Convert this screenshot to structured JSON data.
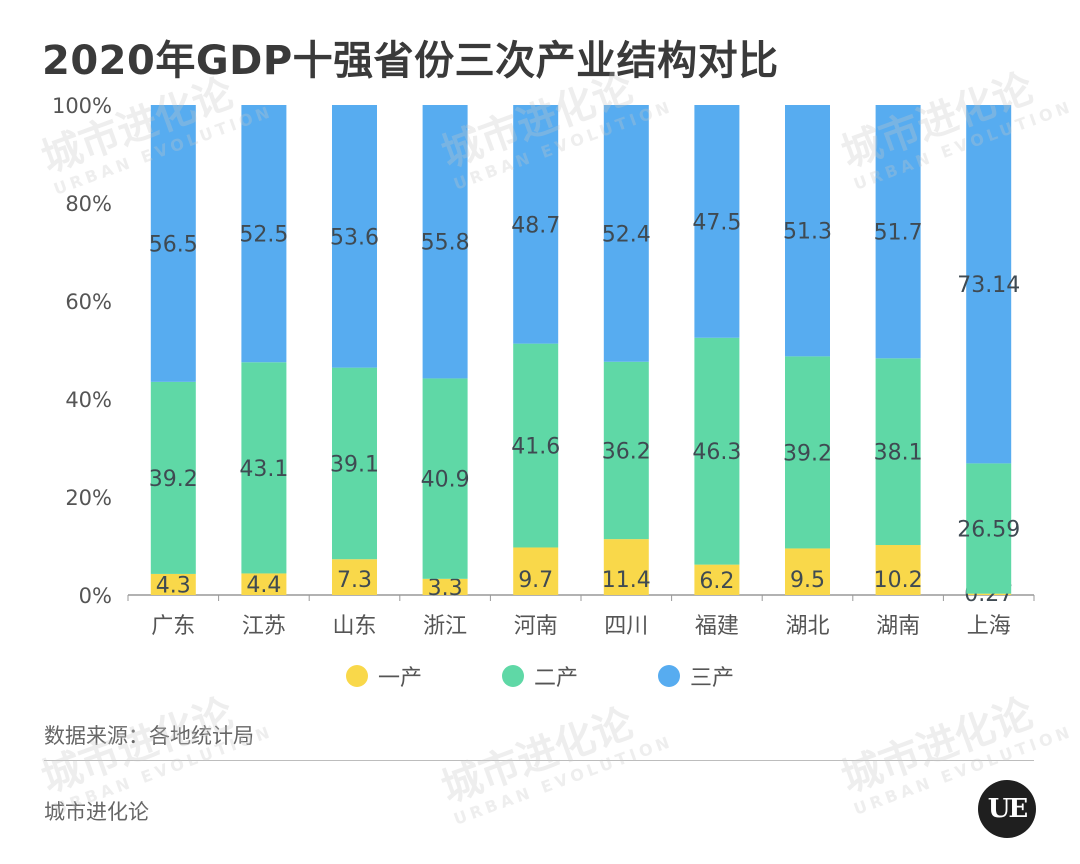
{
  "page": {
    "title": "2020年GDP十强省份三次产业结构对比",
    "source": "数据来源：各地统计局",
    "footer": "城市进化论",
    "watermark": "城市进化论",
    "watermark_sub": "URBAN EVOLUTION",
    "logo_text": "UE"
  },
  "colors": {
    "primary": "#F9D84A",
    "secondary": "#5FD8A6",
    "tertiary": "#57ACF0",
    "axis": "#999999",
    "label": "#555555"
  },
  "chart_data": {
    "type": "bar",
    "stacked": true,
    "normalized": true,
    "title": "2020年GDP十强省份三次产业结构对比",
    "categories": [
      "广东",
      "江苏",
      "山东",
      "浙江",
      "河南",
      "四川",
      "福建",
      "湖北",
      "湖南",
      "上海"
    ],
    "series": [
      {
        "name": "一产",
        "values": [
          4.3,
          4.4,
          7.3,
          3.3,
          9.7,
          11.4,
          6.2,
          9.5,
          10.2,
          0.27
        ]
      },
      {
        "name": "二产",
        "values": [
          39.2,
          43.1,
          39.1,
          40.9,
          41.6,
          36.2,
          46.3,
          39.2,
          38.1,
          26.59
        ]
      },
      {
        "name": "三产",
        "values": [
          56.5,
          52.5,
          53.6,
          55.8,
          48.7,
          52.4,
          47.5,
          51.3,
          51.7,
          73.14
        ]
      }
    ],
    "yticks": [
      "0%",
      "20%",
      "40%",
      "60%",
      "80%",
      "100%"
    ],
    "ylim": [
      0,
      100
    ],
    "legend": "bottom"
  }
}
